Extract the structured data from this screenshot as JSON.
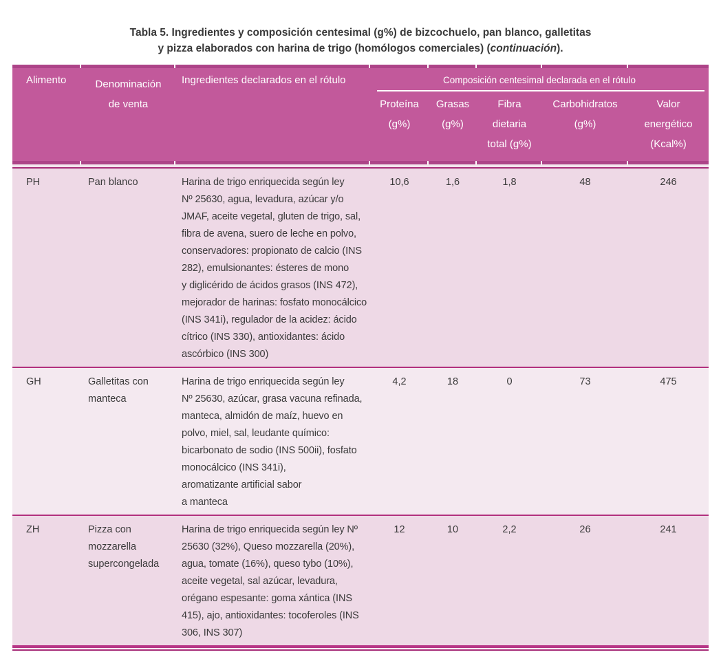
{
  "caption": {
    "line1": "Tabla 5. Ingredientes y composición centesimal (g%) de bizcochuelo, pan blanco, galletitas",
    "line2_prefix": "y pizza elaborados con harina de trigo (homólogos comerciales) (",
    "line2_italic": "continuación",
    "line2_suffix": ")."
  },
  "colors": {
    "header_bg": "#c2599b",
    "header_band": "#ad4488",
    "row_shade_dark": "#eed9e6",
    "row_shade_light": "#f4e9f0",
    "rule": "#a62c78",
    "header_text": "#ffffff",
    "body_text": "#3b3b3b"
  },
  "header": {
    "alimento": "Alimento",
    "denominacion": "Denominación\nde venta",
    "ingredientes": "Ingredientes declarados en el rótulo",
    "grupo": "Composición centesimal declarada en el rótulo",
    "sub": [
      "Proteína\n(g%)",
      "Grasas\n(g%)",
      "Fibra\ndietaria\ntotal (g%)",
      "Carbohidratos\n(g%)",
      "Valor\nenergético\n(Kcal%)"
    ]
  },
  "rows": [
    {
      "alimento": "PH",
      "denominacion": "Pan blanco",
      "ingredientes": "Harina de trigo enriquecida según ley\nNº 25630, agua, levadura, azúcar y/o\nJMAF, aceite vegetal, gluten de trigo, sal,\nfibra de avena, suero de leche en polvo,\nconservadores: propionato de calcio (INS\n282), emulsionantes: ésteres de mono\ny diglicérido de ácidos grasos (INS 472),\nmejorador de harinas: fosfato monocálcico\n(INS 341i), regulador de la acidez: ácido\ncítrico (INS 330), antioxidantes: ácido\nascórbico (INS 300)",
      "proteina": "10,6",
      "grasas": "1,6",
      "fibra": "1,8",
      "carbohidratos": "48",
      "valor_energetico": "246"
    },
    {
      "alimento": "GH",
      "denominacion": "Galletitas con\nmanteca",
      "ingredientes": "Harina de trigo enriquecida según ley\nNº 25630, azúcar, grasa vacuna refinada,\nmanteca, almidón de maíz, huevo en\npolvo, miel, sal, leudante químico:\nbicarbonato de sodio (INS 500ii), fosfato\nmonocálcico (INS 341i),\naromatizante artificial sabor\na manteca",
      "proteina": "4,2",
      "grasas": "18",
      "fibra": "0",
      "carbohidratos": "73",
      "valor_energetico": "475"
    },
    {
      "alimento": "ZH",
      "denominacion": "Pizza con\nmozzarella\nsupercongelada",
      "ingredientes": "Harina de trigo enriquecida según ley Nº\n25630 (32%), Queso mozzarella (20%),\nagua, tomate (16%), queso tybo (10%),\naceite vegetal, sal azúcar, levadura,\norégano espesante: goma xántica (INS\n415), ajo, antioxidantes: tocoferoles (INS\n306, INS 307)",
      "proteina": "12",
      "grasas": "10",
      "fibra": "2,2",
      "carbohidratos": "26",
      "valor_energetico": "241"
    }
  ]
}
